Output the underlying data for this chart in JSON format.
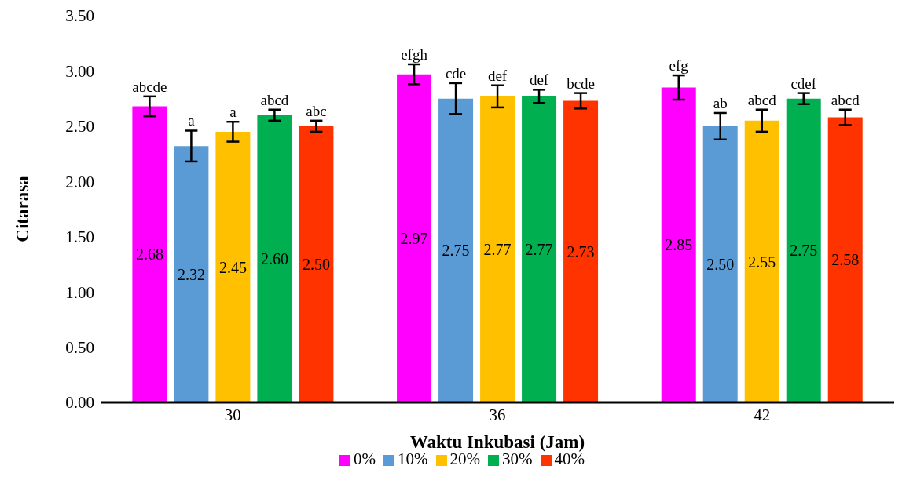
{
  "chart_data": {
    "type": "bar",
    "xlabel": "Waktu Inkubasi (Jam)",
    "ylabel": "Citarasa",
    "categories": [
      "30",
      "36",
      "42"
    ],
    "series": [
      {
        "name": "0%",
        "color": "#ff00ff",
        "values": [
          2.68,
          2.97,
          2.85
        ],
        "errors": [
          0.09,
          0.09,
          0.11
        ],
        "value_labels": [
          "2.68",
          "2.97",
          "2.85"
        ]
      },
      {
        "name": "10%",
        "color": "#5b9bd5",
        "values": [
          2.32,
          2.75,
          2.5
        ],
        "errors": [
          0.14,
          0.14,
          0.12
        ],
        "value_labels": [
          "2.32",
          "2.75",
          "2.50"
        ]
      },
      {
        "name": "20%",
        "color": "#ffc000",
        "values": [
          2.45,
          2.77,
          2.55
        ],
        "errors": [
          0.09,
          0.1,
          0.1
        ],
        "value_labels": [
          "2.45",
          "2.77",
          "2.55"
        ]
      },
      {
        "name": "30%",
        "color": "#00b050",
        "values": [
          2.6,
          2.77,
          2.75
        ],
        "errors": [
          0.05,
          0.06,
          0.05
        ],
        "value_labels": [
          "2.60",
          "2.77",
          "2.75"
        ]
      },
      {
        "name": "40%",
        "color": "#ff3300",
        "values": [
          2.5,
          2.73,
          2.58
        ],
        "errors": [
          0.05,
          0.07,
          0.07
        ],
        "value_labels": [
          "2.50",
          "2.73",
          "2.58"
        ]
      }
    ],
    "ylim": [
      0,
      3.5
    ],
    "yticks": [
      {
        "value": 0,
        "label": "0.00"
      },
      {
        "value": 0.5,
        "label": "0.50"
      },
      {
        "value": 1,
        "label": "1.00"
      },
      {
        "value": 1.5,
        "label": "1.50"
      },
      {
        "value": 2,
        "label": "2.00"
      },
      {
        "value": 2.5,
        "label": "2.50"
      },
      {
        "value": 3,
        "label": "3.00"
      },
      {
        "value": 3.5,
        "label": "3.50"
      }
    ],
    "grid": false,
    "legend": "bottom",
    "annotations": [
      "abcde",
      "a",
      "a",
      "abcd",
      "abc",
      "efgh",
      "cde",
      "def",
      "def",
      "bcde",
      "efg",
      "ab",
      "abcd",
      "cdef",
      "abcd"
    ]
  }
}
